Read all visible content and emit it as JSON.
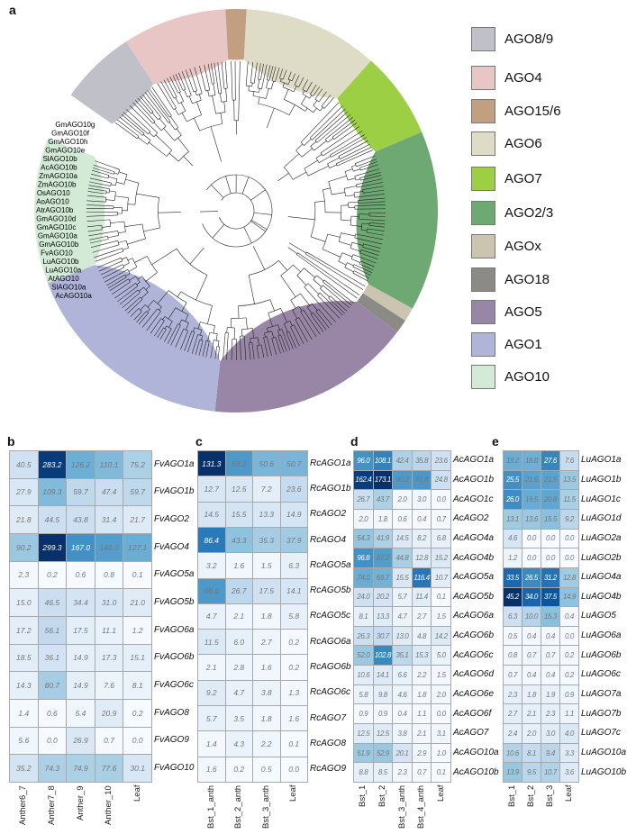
{
  "panel_letters": {
    "a": "a",
    "b": "b",
    "c": "c",
    "d": "d",
    "e": "e"
  },
  "tree": {
    "clades": [
      {
        "name": "AGO8/9",
        "color": "#c0c1c8"
      },
      {
        "name": "AGO4",
        "color": "#e9c6c6"
      },
      {
        "name": "AGO15/6",
        "color": "#c19f80"
      },
      {
        "name": "AGO6",
        "color": "#dedcc6"
      },
      {
        "name": "AGO7",
        "color": "#9dcf45"
      },
      {
        "name": "AGO2/3",
        "color": "#6ea872"
      },
      {
        "name": "AGOx",
        "color": "#cbc4b0"
      },
      {
        "name": "AGO18",
        "color": "#8c8a86"
      },
      {
        "name": "AGO5",
        "color": "#9985a5"
      },
      {
        "name": "AGO1",
        "color": "#afb4d8"
      },
      {
        "name": "AGO10",
        "color": "#d3ebd6"
      }
    ],
    "ago10_leaves": [
      "GmAGO10g",
      "GmAGO10f",
      "GmAGO10h",
      "GmAGO10e",
      "SlAGO10b",
      "AcAGO10b",
      "ZmAGO10a",
      "ZmAGO10b",
      "OsAGO10",
      "AoAGO10",
      "AtrAGO10b",
      "GmAGO10d",
      "GmAGO10c",
      "GmAGO10a",
      "GmAGO10b",
      "FvAGO10",
      "LuAGO10b",
      "LuAGO10a",
      "AtAGO10",
      "SlAGO10a",
      "AcAGO10a"
    ]
  },
  "chart_data": [
    {
      "type": "heatmap",
      "panel": "b",
      "columns": [
        "Anther6_7",
        "Anther7_8",
        "Anther_9",
        "Anther_10",
        "Leaf"
      ],
      "rows": [
        "FvAGO1a",
        "FvAGO1b",
        "FvAGO2",
        "FvAGO4",
        "FvAGO5a",
        "FvAGO5b",
        "FvAGO6a",
        "FvAGO6b",
        "FvAGO6c",
        "FvAGO8",
        "FvAGO9",
        "FvAGO10"
      ],
      "values": [
        [
          "40.5",
          "283.2",
          "126.2",
          "110.1",
          "75.2"
        ],
        [
          "27.9",
          "109.3",
          "59.7",
          "47.4",
          "59.7"
        ],
        [
          "21.8",
          "44.5",
          "43.8",
          "31.4",
          "21.7"
        ],
        [
          "90.2",
          "299.3",
          "167.0",
          "149.0",
          "127.1"
        ],
        [
          "2.3",
          "0.2",
          "0.6",
          "0.8",
          "0.1"
        ],
        [
          "15.0",
          "46.5",
          "34.4",
          "31.0",
          "21.0"
        ],
        [
          "17.2",
          "56.1",
          "17.5",
          "11.1",
          "1.2"
        ],
        [
          "18.5",
          "36.1",
          "14.9",
          "17.3",
          "15.1"
        ],
        [
          "14.3",
          "80.7",
          "14.9",
          "7.6",
          "8.1"
        ],
        [
          "1.4",
          "0.6",
          "5.4",
          "20.9",
          "0.2"
        ],
        [
          "5.6",
          "0.0",
          "26.9",
          "0.7",
          "0.0"
        ],
        [
          "35.2",
          "74.3",
          "74.9",
          "77.6",
          "30.1"
        ]
      ]
    },
    {
      "type": "heatmap",
      "panel": "c",
      "columns": [
        "Bst_1_anth",
        "Bst_2_anth",
        "Bst_3_anth",
        "Leaf"
      ],
      "rows": [
        "RcAGO1a",
        "RcAGO1b",
        "RcAGO2",
        "RcAGO4",
        "RcAGO5a",
        "RcAGO5b",
        "RcAGO5c",
        "RcAGO6a",
        "RcAGO6b",
        "RcAGO6c",
        "RcAGO7",
        "RcAGO8",
        "RcAGO9"
      ],
      "values": [
        [
          "131.3",
          "68.2",
          "50.6",
          "50.7"
        ],
        [
          "12.7",
          "12.5",
          "7.2",
          "23.6"
        ],
        [
          "14.5",
          "15.5",
          "13.3",
          "14.9"
        ],
        [
          "86.4",
          "43.3",
          "35.3",
          "37.9"
        ],
        [
          "3.2",
          "1.6",
          "1.5",
          "6.3"
        ],
        [
          "68.6",
          "26.7",
          "17.5",
          "14.1"
        ],
        [
          "4.7",
          "2.1",
          "1.8",
          "5.8"
        ],
        [
          "11.5",
          "6.0",
          "2.7",
          "0.2"
        ],
        [
          "2.1",
          "2.8",
          "1.6",
          "0.2"
        ],
        [
          "9.2",
          "4.7",
          "3.8",
          "1.3"
        ],
        [
          "5.7",
          "3.5",
          "1.8",
          "1.6"
        ],
        [
          "1.4",
          "4.3",
          "2.2",
          "0.1"
        ],
        [
          "1.6",
          "0.2",
          "0.5",
          "0.0"
        ]
      ]
    },
    {
      "type": "heatmap",
      "panel": "d",
      "columns": [
        "Bst_1",
        "Bst_2",
        "Bst_3_anth",
        "Bst_4_anth",
        "Leaf"
      ],
      "rows": [
        "AcAGO1a",
        "AcAGO1b",
        "AcAGO1c",
        "AcAGO2",
        "AcAGO4a",
        "AcAGO4b",
        "AcAGO5a",
        "AcAGO5b",
        "AcAGO6a",
        "AcAGO6b",
        "AcAGO6c",
        "AcAGO6d",
        "AcAGO6e",
        "AcAGO6f",
        "AcAGO7",
        "AcAGO10a",
        "AcAGO10b"
      ],
      "values": [
        [
          "96.0",
          "108.1",
          "42.4",
          "35.8",
          "23.6"
        ],
        [
          "162.4",
          "173.1",
          "90.2",
          "91.8",
          "24.8"
        ],
        [
          "26.7",
          "43.7",
          "2.0",
          "3.0",
          "0.0"
        ],
        [
          "2.0",
          "1.8",
          "0.6",
          "0.4",
          "0.7"
        ],
        [
          "54.3",
          "41.9",
          "14.5",
          "8.2",
          "6.8"
        ],
        [
          "96.8",
          "87.2",
          "44.8",
          "12.8",
          "15.2"
        ],
        [
          "74.0",
          "69.7",
          "15.5",
          "116.4",
          "10.7"
        ],
        [
          "24.0",
          "20.2",
          "5.7",
          "11.4",
          "0.1"
        ],
        [
          "8.1",
          "13.3",
          "4.7",
          "2.7",
          "1.5"
        ],
        [
          "26.3",
          "30.7",
          "13.0",
          "4.8",
          "14.2"
        ],
        [
          "52.0",
          "102.8",
          "35.1",
          "15.3",
          "5.0"
        ],
        [
          "10.6",
          "14.1",
          "6.6",
          "2.2",
          "1.5"
        ],
        [
          "5.8",
          "9.8",
          "4.6",
          "1.8",
          "2.0"
        ],
        [
          "0.9",
          "0.9",
          "0.4",
          "1.1",
          "0.0"
        ],
        [
          "12.5",
          "12.5",
          "3.8",
          "2.1",
          "3.1"
        ],
        [
          "51.9",
          "52.9",
          "20.1",
          "2.9",
          "1.0"
        ],
        [
          "8.8",
          "8.5",
          "2.3",
          "0.7",
          "0.1"
        ]
      ]
    },
    {
      "type": "heatmap",
      "panel": "e",
      "columns": [
        "Bst_1",
        "Bst_2",
        "Bst_3",
        "Leaf"
      ],
      "rows": [
        "LuAGO1a",
        "LuAGO1b",
        "LuAGO1c",
        "LuAGO1d",
        "LuAGO2a",
        "LuAGO2b",
        "LuAGO4a",
        "LuAGO4b",
        "LuAGO5",
        "LuAGO6a",
        "LuAGO6b",
        "LuAGO6c",
        "LuAGO7a",
        "LuAGO7b",
        "LuAGO7c",
        "LuAGO10a",
        "LuAGO10b"
      ],
      "values": [
        [
          "19.2",
          "18.8",
          "27.6",
          "7.6"
        ],
        [
          "25.5",
          "21.6",
          "21.5",
          "13.5"
        ],
        [
          "26.0",
          "19.5",
          "20.8",
          "11.5"
        ],
        [
          "13.1",
          "13.6",
          "15.5",
          "9.2"
        ],
        [
          "4.6",
          "0.0",
          "0.0",
          "0.0"
        ],
        [
          "1.2",
          "0.0",
          "0.0",
          "0.0"
        ],
        [
          "33.5",
          "26.5",
          "31.2",
          "12.8"
        ],
        [
          "45.2",
          "34.0",
          "37.5",
          "14.9"
        ],
        [
          "6.3",
          "10.0",
          "15.3",
          "0.4"
        ],
        [
          "0.5",
          "0.4",
          "0.4",
          "0.0"
        ],
        [
          "0.8",
          "0.7",
          "0.7",
          "0.2"
        ],
        [
          "0.7",
          "0.4",
          "0.4",
          "0.2"
        ],
        [
          "2.3",
          "1.8",
          "1.9",
          "0.9"
        ],
        [
          "2.7",
          "2.1",
          "2.3",
          "1.1"
        ],
        [
          "2.4",
          "2.0",
          "3.0",
          "4.0"
        ],
        [
          "10.6",
          "8.1",
          "9.4",
          "3.3"
        ],
        [
          "13.9",
          "9.5",
          "10.7",
          "3.6"
        ]
      ]
    }
  ]
}
